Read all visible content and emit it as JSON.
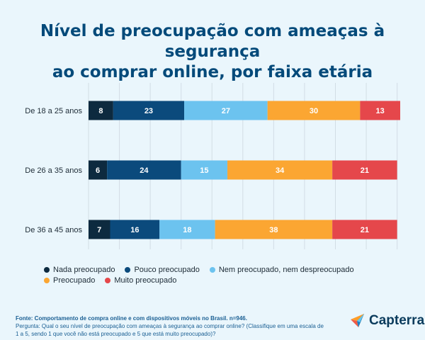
{
  "title_line1": "Nível de preocupação com ameaças à segurança",
  "title_line2": "ao comprar online, por faixa etária",
  "chart_data": {
    "type": "bar",
    "orientation": "horizontal",
    "stacked": true,
    "categories": [
      "De 18 a 25 anos",
      "De 26 a 35 anos",
      "De 36 a 45 anos"
    ],
    "series": [
      {
        "name": "Nada preocupado",
        "values": [
          8,
          6,
          7
        ],
        "color": "#0d2a3f"
      },
      {
        "name": "Pouco preocupado",
        "values": [
          23,
          24,
          16
        ],
        "color": "#0b4a7c"
      },
      {
        "name": "Nem preocupado, nem despreocupado",
        "values": [
          27,
          15,
          18
        ],
        "color": "#6cc3ef"
      },
      {
        "name": "Preocupado",
        "values": [
          30,
          34,
          38
        ],
        "color": "#fba632"
      },
      {
        "name": "Muito preocupado",
        "values": [
          13,
          21,
          21
        ],
        "color": "#e5474b"
      }
    ],
    "xlim": [
      0,
      101
    ],
    "grid": true,
    "legend_position": "bottom"
  },
  "footer": {
    "source_label": "Fonte:",
    "source_text": "Comportamento de compra online e com dispositivos móveis no Brasil. n=946.",
    "question": "Pergunta: Qual o seu nível de preocupação com ameaças à segurança ao comprar online? (Classifique em uma escala de 1 a 5, sendo 1 que você não está preocupado e 5 que está muito preocupado)?"
  },
  "logo": {
    "name": "Capterra",
    "icon": "capterra-arrow-icon"
  }
}
